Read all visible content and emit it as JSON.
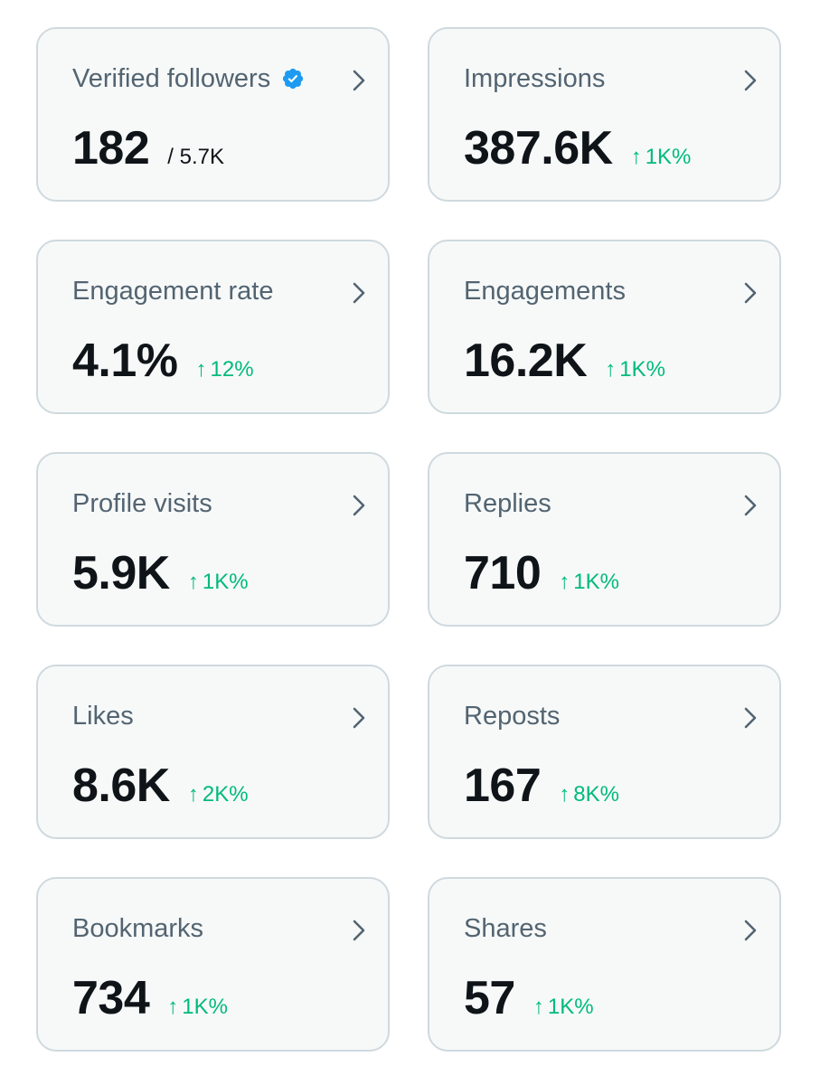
{
  "colors": {
    "card_bg": "#f7f9f9",
    "card_border": "#cfd9de",
    "label": "#536471",
    "value": "#0f1419",
    "positive": "#00ba7c",
    "verified_badge": "#1d9bf0"
  },
  "icons": {
    "chevron": "chevron-right-icon",
    "change": "arrow-up-icon",
    "badge": "verified-badge-icon"
  },
  "metrics": [
    {
      "label": "Verified followers",
      "value": "182",
      "total": "/ 5.7K",
      "verified": true
    },
    {
      "label": "Impressions",
      "value": "387.6K",
      "arrow": "↑",
      "change": "1K%"
    },
    {
      "label": "Engagement rate",
      "value": "4.1%",
      "arrow": "↑",
      "change": "12%"
    },
    {
      "label": "Engagements",
      "value": "16.2K",
      "arrow": "↑",
      "change": "1K%"
    },
    {
      "label": "Profile visits",
      "value": "5.9K",
      "arrow": "↑",
      "change": "1K%"
    },
    {
      "label": "Replies",
      "value": "710",
      "arrow": "↑",
      "change": "1K%"
    },
    {
      "label": "Likes",
      "value": "8.6K",
      "arrow": "↑",
      "change": "2K%"
    },
    {
      "label": "Reposts",
      "value": "167",
      "arrow": "↑",
      "change": "8K%"
    },
    {
      "label": "Bookmarks",
      "value": "734",
      "arrow": "↑",
      "change": "1K%"
    },
    {
      "label": "Shares",
      "value": "57",
      "arrow": "↑",
      "change": "1K%"
    }
  ]
}
